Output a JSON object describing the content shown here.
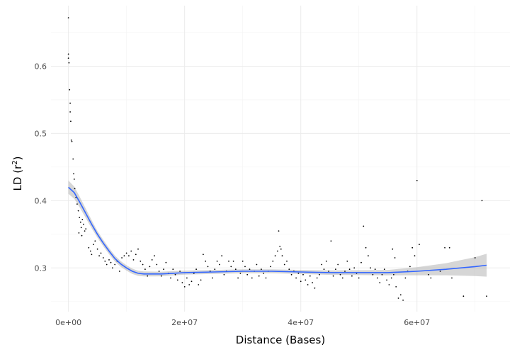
{
  "chart_data": {
    "type": "scatter",
    "title": "",
    "xlabel": "Distance (Bases)",
    "ylabel_main": "LD (r",
    "ylabel_sup": "2",
    "ylabel_close": ")",
    "xlim": [
      -3000000,
      76000000
    ],
    "ylim": [
      0.235,
      0.69
    ],
    "x_ticks": [
      {
        "value": 0,
        "label": "0e+00"
      },
      {
        "value": 20000000,
        "label": "2e+07"
      },
      {
        "value": 40000000,
        "label": "4e+07"
      },
      {
        "value": 60000000,
        "label": "6e+07"
      }
    ],
    "x_minor_ticks": [
      10000000,
      30000000,
      50000000,
      70000000
    ],
    "y_ticks": [
      {
        "value": 0.3,
        "label": "0.3"
      },
      {
        "value": 0.4,
        "label": "0.4"
      },
      {
        "value": 0.5,
        "label": "0.5"
      },
      {
        "value": 0.6,
        "label": "0.6"
      }
    ],
    "y_minor_ticks": [
      0.25,
      0.35,
      0.45,
      0.55,
      0.65
    ],
    "grid": true,
    "point_color": "#000000",
    "smooth_color": "#3366FF",
    "band_color": "#999999",
    "points": [
      [
        0,
        0.672
      ],
      [
        0,
        0.618
      ],
      [
        0,
        0.612
      ],
      [
        100000,
        0.605
      ],
      [
        200000,
        0.565
      ],
      [
        300000,
        0.545
      ],
      [
        300000,
        0.532
      ],
      [
        400000,
        0.518
      ],
      [
        500000,
        0.49
      ],
      [
        600000,
        0.488
      ],
      [
        800000,
        0.462
      ],
      [
        900000,
        0.44
      ],
      [
        1000000,
        0.432
      ],
      [
        1100000,
        0.418
      ],
      [
        1300000,
        0.405
      ],
      [
        1500000,
        0.395
      ],
      [
        1700000,
        0.385
      ],
      [
        1900000,
        0.375
      ],
      [
        2100000,
        0.368
      ],
      [
        2200000,
        0.36
      ],
      [
        2400000,
        0.372
      ],
      [
        2600000,
        0.365
      ],
      [
        2800000,
        0.355
      ],
      [
        3000000,
        0.358
      ],
      [
        1800000,
        0.352
      ],
      [
        2300000,
        0.348
      ],
      [
        3500000,
        0.33
      ],
      [
        3800000,
        0.325
      ],
      [
        4000000,
        0.32
      ],
      [
        4300000,
        0.335
      ],
      [
        4600000,
        0.34
      ],
      [
        5000000,
        0.328
      ],
      [
        5300000,
        0.318
      ],
      [
        5600000,
        0.322
      ],
      [
        6000000,
        0.315
      ],
      [
        6300000,
        0.31
      ],
      [
        6600000,
        0.305
      ],
      [
        7000000,
        0.312
      ],
      [
        7300000,
        0.308
      ],
      [
        7600000,
        0.3
      ],
      [
        8000000,
        0.305
      ],
      [
        8400000,
        0.31
      ],
      [
        8800000,
        0.295
      ],
      [
        9200000,
        0.315
      ],
      [
        9600000,
        0.318
      ],
      [
        10000000,
        0.322
      ],
      [
        10400000,
        0.318
      ],
      [
        10800000,
        0.325
      ],
      [
        11200000,
        0.312
      ],
      [
        11600000,
        0.32
      ],
      [
        12000000,
        0.328
      ],
      [
        12400000,
        0.31
      ],
      [
        12800000,
        0.305
      ],
      [
        13200000,
        0.298
      ],
      [
        13600000,
        0.288
      ],
      [
        14000000,
        0.302
      ],
      [
        14400000,
        0.312
      ],
      [
        14800000,
        0.318
      ],
      [
        15200000,
        0.305
      ],
      [
        15600000,
        0.295
      ],
      [
        16000000,
        0.288
      ],
      [
        16400000,
        0.298
      ],
      [
        16800000,
        0.308
      ],
      [
        17200000,
        0.292
      ],
      [
        17600000,
        0.285
      ],
      [
        18000000,
        0.298
      ],
      [
        18400000,
        0.29
      ],
      [
        18800000,
        0.282
      ],
      [
        19200000,
        0.295
      ],
      [
        19600000,
        0.278
      ],
      [
        20000000,
        0.272
      ],
      [
        20400000,
        0.285
      ],
      [
        20800000,
        0.275
      ],
      [
        21200000,
        0.28
      ],
      [
        21600000,
        0.292
      ],
      [
        22000000,
        0.298
      ],
      [
        22400000,
        0.275
      ],
      [
        22800000,
        0.282
      ],
      [
        23200000,
        0.32
      ],
      [
        23600000,
        0.31
      ],
      [
        24000000,
        0.302
      ],
      [
        24400000,
        0.295
      ],
      [
        24800000,
        0.285
      ],
      [
        25200000,
        0.298
      ],
      [
        25600000,
        0.31
      ],
      [
        26000000,
        0.305
      ],
      [
        26400000,
        0.318
      ],
      [
        26800000,
        0.29
      ],
      [
        27200000,
        0.295
      ],
      [
        27600000,
        0.31
      ],
      [
        28000000,
        0.302
      ],
      [
        28400000,
        0.31
      ],
      [
        28800000,
        0.298
      ],
      [
        29200000,
        0.285
      ],
      [
        29600000,
        0.292
      ],
      [
        30000000,
        0.31
      ],
      [
        30400000,
        0.302
      ],
      [
        30800000,
        0.29
      ],
      [
        31200000,
        0.298
      ],
      [
        31600000,
        0.285
      ],
      [
        32000000,
        0.295
      ],
      [
        32400000,
        0.305
      ],
      [
        32800000,
        0.288
      ],
      [
        33200000,
        0.298
      ],
      [
        33600000,
        0.292
      ],
      [
        34000000,
        0.285
      ],
      [
        34400000,
        0.295
      ],
      [
        34800000,
        0.302
      ],
      [
        35200000,
        0.31
      ],
      [
        35600000,
        0.318
      ],
      [
        36000000,
        0.325
      ],
      [
        36400000,
        0.332
      ],
      [
        36800000,
        0.318
      ],
      [
        37200000,
        0.305
      ],
      [
        37600000,
        0.31
      ],
      [
        38000000,
        0.298
      ],
      [
        36200000,
        0.355
      ],
      [
        36600000,
        0.328
      ],
      [
        38400000,
        0.29
      ],
      [
        38800000,
        0.295
      ],
      [
        39200000,
        0.285
      ],
      [
        39600000,
        0.292
      ],
      [
        40000000,
        0.28
      ],
      [
        40400000,
        0.29
      ],
      [
        40800000,
        0.282
      ],
      [
        41200000,
        0.275
      ],
      [
        41600000,
        0.288
      ],
      [
        42000000,
        0.278
      ],
      [
        42400000,
        0.27
      ],
      [
        42800000,
        0.285
      ],
      [
        43200000,
        0.29
      ],
      [
        43600000,
        0.305
      ],
      [
        44000000,
        0.298
      ],
      [
        44400000,
        0.31
      ],
      [
        44800000,
        0.295
      ],
      [
        45200000,
        0.34
      ],
      [
        45600000,
        0.288
      ],
      [
        46000000,
        0.298
      ],
      [
        46400000,
        0.305
      ],
      [
        46800000,
        0.29
      ],
      [
        47200000,
        0.285
      ],
      [
        47600000,
        0.295
      ],
      [
        48000000,
        0.31
      ],
      [
        48400000,
        0.298
      ],
      [
        48800000,
        0.288
      ],
      [
        49200000,
        0.3
      ],
      [
        49600000,
        0.292
      ],
      [
        50000000,
        0.285
      ],
      [
        50400000,
        0.308
      ],
      [
        50800000,
        0.362
      ],
      [
        51200000,
        0.33
      ],
      [
        51600000,
        0.318
      ],
      [
        52000000,
        0.3
      ],
      [
        52400000,
        0.29
      ],
      [
        52800000,
        0.298
      ],
      [
        53200000,
        0.285
      ],
      [
        53600000,
        0.278
      ],
      [
        54000000,
        0.29
      ],
      [
        54400000,
        0.298
      ],
      [
        54800000,
        0.282
      ],
      [
        55200000,
        0.275
      ],
      [
        55600000,
        0.285
      ],
      [
        56000000,
        0.29
      ],
      [
        56400000,
        0.272
      ],
      [
        56800000,
        0.255
      ],
      [
        57200000,
        0.26
      ],
      [
        57600000,
        0.252
      ],
      [
        58000000,
        0.285
      ],
      [
        58400000,
        0.295
      ],
      [
        58800000,
        0.302
      ],
      [
        59200000,
        0.33
      ],
      [
        59600000,
        0.318
      ],
      [
        55800000,
        0.328
      ],
      [
        56200000,
        0.315
      ],
      [
        60000000,
        0.43
      ],
      [
        60400000,
        0.335
      ],
      [
        62000000,
        0.29
      ],
      [
        62400000,
        0.285
      ],
      [
        64000000,
        0.295
      ],
      [
        64800000,
        0.33
      ],
      [
        65600000,
        0.33
      ],
      [
        66000000,
        0.285
      ],
      [
        68000000,
        0.258
      ],
      [
        70000000,
        0.315
      ],
      [
        71200000,
        0.4
      ],
      [
        72000000,
        0.258
      ]
    ],
    "smooth": [
      [
        0,
        0.42
      ],
      [
        1000000,
        0.412
      ],
      [
        2000000,
        0.397
      ],
      [
        3000000,
        0.381
      ],
      [
        4000000,
        0.365
      ],
      [
        5000000,
        0.35
      ],
      [
        6000000,
        0.337
      ],
      [
        7000000,
        0.325
      ],
      [
        8000000,
        0.314
      ],
      [
        9000000,
        0.306
      ],
      [
        10000000,
        0.3
      ],
      [
        11000000,
        0.295
      ],
      [
        12000000,
        0.292
      ],
      [
        13000000,
        0.291
      ],
      [
        14000000,
        0.291
      ],
      [
        15000000,
        0.291
      ],
      [
        16000000,
        0.291
      ],
      [
        18000000,
        0.292
      ],
      [
        20000000,
        0.293
      ],
      [
        25000000,
        0.294
      ],
      [
        30000000,
        0.295
      ],
      [
        35000000,
        0.295
      ],
      [
        40000000,
        0.294
      ],
      [
        45000000,
        0.293
      ],
      [
        50000000,
        0.293
      ],
      [
        55000000,
        0.293
      ],
      [
        60000000,
        0.295
      ],
      [
        65000000,
        0.298
      ],
      [
        70000000,
        0.302
      ],
      [
        72000000,
        0.304
      ]
    ],
    "band_half_width": [
      [
        0,
        0.01
      ],
      [
        5000000,
        0.005
      ],
      [
        10000000,
        0.004
      ],
      [
        20000000,
        0.003
      ],
      [
        40000000,
        0.003
      ],
      [
        55000000,
        0.004
      ],
      [
        60000000,
        0.006
      ],
      [
        65000000,
        0.009
      ],
      [
        70000000,
        0.014
      ],
      [
        72000000,
        0.017
      ]
    ]
  }
}
